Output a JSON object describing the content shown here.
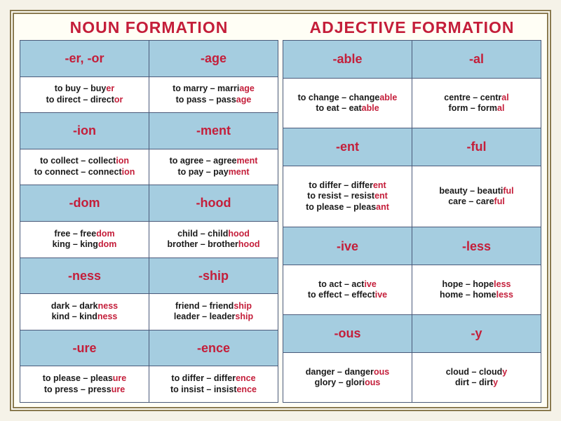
{
  "colors": {
    "accent_red": "#c41e3a",
    "suffix_bg": "#a5cde0",
    "example_bg": "#ffffff",
    "frame_border": "#8a7a50",
    "grid_border": "#4a5a7a",
    "page_bg": "#f5f2e8"
  },
  "fonts": {
    "title_size_pt": 17,
    "suffix_size_pt": 14,
    "example_size_pt": 10
  },
  "noun": {
    "title": "NOUN FORMATION",
    "cells": [
      {
        "suffix": "-er, -or"
      },
      {
        "suffix": "-age"
      },
      {
        "examples": [
          {
            "base": "to buy – buy",
            "hl": "er"
          },
          {
            "base": "to direct – direct",
            "hl": "or"
          }
        ]
      },
      {
        "examples": [
          {
            "base": "to marry – marri",
            "hl": "age"
          },
          {
            "base": "to pass – pass",
            "hl": "age"
          }
        ]
      },
      {
        "suffix": "-ion"
      },
      {
        "suffix": "-ment"
      },
      {
        "examples": [
          {
            "base": "to collect – collect",
            "hl": "ion"
          },
          {
            "base": "to connect – connect",
            "hl": "ion"
          }
        ]
      },
      {
        "examples": [
          {
            "base": "to agree – agree",
            "hl": "ment"
          },
          {
            "base": "to pay – pay",
            "hl": "ment"
          }
        ]
      },
      {
        "suffix": "-dom"
      },
      {
        "suffix": "-hood"
      },
      {
        "examples": [
          {
            "base": "free – free",
            "hl": "dom"
          },
          {
            "base": "king – king",
            "hl": "dom"
          }
        ]
      },
      {
        "examples": [
          {
            "base": "child – child",
            "hl": "hood"
          },
          {
            "base": "brother – brother",
            "hl": "hood"
          }
        ]
      },
      {
        "suffix": "-ness"
      },
      {
        "suffix": "-ship"
      },
      {
        "examples": [
          {
            "base": "dark – dark",
            "hl": "ness"
          },
          {
            "base": "kind – kind",
            "hl": "ness"
          }
        ]
      },
      {
        "examples": [
          {
            "base": "friend – friend",
            "hl": "ship"
          },
          {
            "base": "leader – leader",
            "hl": "ship"
          }
        ]
      },
      {
        "suffix": "-ure"
      },
      {
        "suffix": "-ence"
      },
      {
        "examples": [
          {
            "base": "to please – pleas",
            "hl": "ure"
          },
          {
            "base": "to press – press",
            "hl": "ure"
          }
        ]
      },
      {
        "examples": [
          {
            "base": "to differ – differ",
            "hl": "ence"
          },
          {
            "base": "to insist – insist",
            "hl": "ence"
          }
        ]
      }
    ]
  },
  "adj": {
    "title": "ADJECTIVE FORMATION",
    "cells": [
      {
        "suffix": "-able",
        "h": 1
      },
      {
        "suffix": "-al",
        "h": 1
      },
      {
        "examples": [
          {
            "base": "to change – change",
            "hl": "able"
          },
          {
            "base": "to eat – eat",
            "hl": "able"
          }
        ],
        "h": 1.3
      },
      {
        "examples": [
          {
            "base": "centre – centr",
            "hl": "al"
          },
          {
            "base": "form – form",
            "hl": "al"
          }
        ],
        "h": 1.3
      },
      {
        "suffix": "-ent",
        "h": 1
      },
      {
        "suffix": "-ful",
        "h": 1
      },
      {
        "examples": [
          {
            "base": "to differ – differ",
            "hl": "ent"
          },
          {
            "base": "to resist – resist",
            "hl": "ent"
          },
          {
            "base": "to please – pleas",
            "hl": "ant"
          }
        ],
        "h": 1.6
      },
      {
        "examples": [
          {
            "base": "beauty – beauti",
            "hl": "ful"
          },
          {
            "base": "care – care",
            "hl": "ful"
          }
        ],
        "h": 1.6
      },
      {
        "suffix": "-ive",
        "h": 1
      },
      {
        "suffix": "-less",
        "h": 1
      },
      {
        "examples": [
          {
            "base": "to act – act",
            "hl": "ive"
          },
          {
            "base": "to effect – effect",
            "hl": "ive"
          }
        ],
        "h": 1.3
      },
      {
        "examples": [
          {
            "base": "hope – hope",
            "hl": "less"
          },
          {
            "base": "home – home",
            "hl": "less"
          }
        ],
        "h": 1.3
      },
      {
        "suffix": "-ous",
        "h": 1
      },
      {
        "suffix": "-y",
        "h": 1
      },
      {
        "examples": [
          {
            "base": "danger – danger",
            "hl": "ous"
          },
          {
            "base": "glory – glori",
            "hl": "ous"
          }
        ],
        "h": 1.3
      },
      {
        "examples": [
          {
            "base": "cloud – cloud",
            "hl": "y"
          },
          {
            "base": "dirt – dirt",
            "hl": "y"
          }
        ],
        "h": 1.3
      }
    ]
  }
}
